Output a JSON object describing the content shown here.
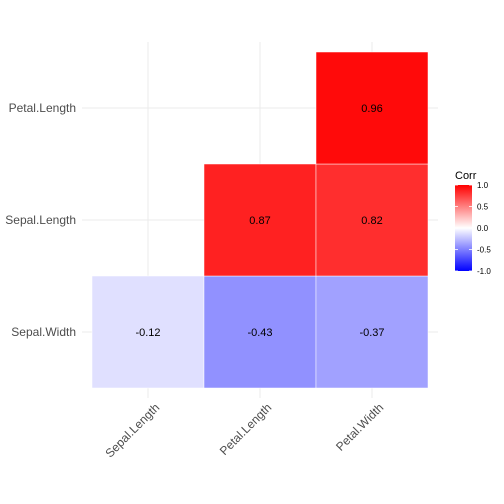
{
  "chart_data": {
    "type": "heatmap",
    "title": "",
    "xlabel": "",
    "ylabel": "",
    "x_categories": [
      "Sepal.Length",
      "Petal.Length",
      "Petal.Width"
    ],
    "y_categories": [
      "Sepal.Width",
      "Sepal.Length",
      "Petal.Length"
    ],
    "cells": [
      {
        "x": "Sepal.Length",
        "y": "Sepal.Width",
        "value": -0.12,
        "label": "-0.12"
      },
      {
        "x": "Petal.Length",
        "y": "Sepal.Width",
        "value": -0.43,
        "label": "-0.43"
      },
      {
        "x": "Petal.Width",
        "y": "Sepal.Width",
        "value": -0.37,
        "label": "-0.37"
      },
      {
        "x": "Petal.Length",
        "y": "Sepal.Length",
        "value": 0.87,
        "label": "0.87"
      },
      {
        "x": "Petal.Width",
        "y": "Sepal.Length",
        "value": 0.82,
        "label": "0.82"
      },
      {
        "x": "Petal.Width",
        "y": "Petal.Length",
        "value": 0.96,
        "label": "0.96"
      }
    ],
    "legend": {
      "title": "Corr",
      "placement": "right",
      "range": [
        -1,
        1
      ],
      "ticks": [
        "1.0",
        "0.5",
        "0.0",
        "-0.5",
        "-1.0"
      ],
      "tick_values": [
        1.0,
        0.5,
        0.0,
        -0.5,
        -1.0
      ]
    },
    "colors": {
      "low": "#0000ff",
      "mid": "#ffffff",
      "high": "#ff0000"
    },
    "grid": true
  }
}
